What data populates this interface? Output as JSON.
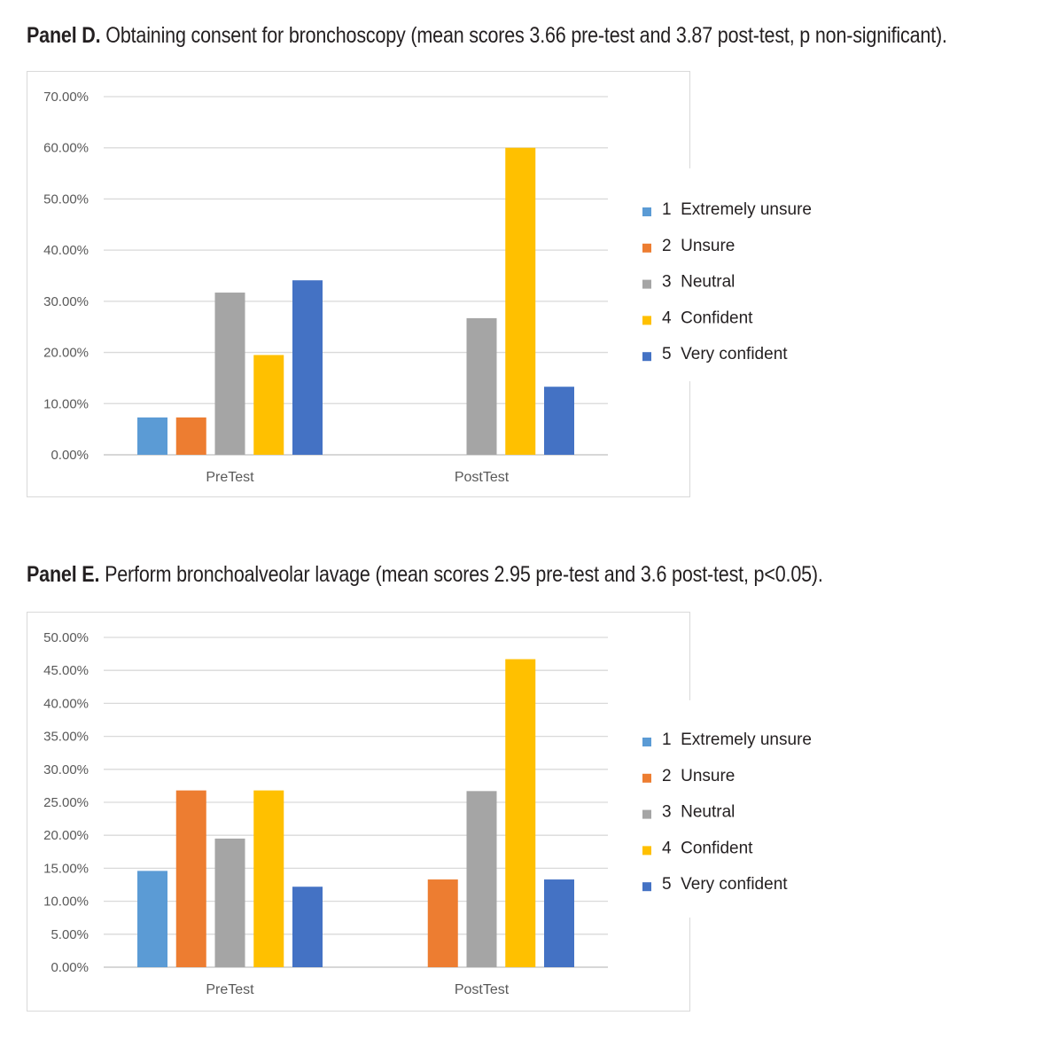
{
  "panels": [
    {
      "label": "Panel D.",
      "title": "Obtaining consent for bronchoscopy (mean scores 3.66 pre-test and 3.87 post-test, p non-significant)."
    },
    {
      "label": "Panel E.",
      "title": "Perform bronchoalveolar lavage (mean scores 2.95 pre-test and 3.6 post-test, p<0.05)."
    }
  ],
  "chart_data": [
    {
      "type": "bar",
      "title": "Panel D. Obtaining consent for bronchoscopy (mean scores 3.66 pre-test and 3.87 post-test, p non-significant).",
      "categories": [
        "PreTest",
        "PostTest"
      ],
      "ylim": [
        0,
        70
      ],
      "yticks": [
        "0.00%",
        "10.00%",
        "20.00%",
        "30.00%",
        "40.00%",
        "50.00%",
        "60.00%",
        "70.00%"
      ],
      "ystep": 10,
      "grid": true,
      "legend_position": "right",
      "series": [
        {
          "name": "1  Extremely unsure",
          "color": "#5b9bd5",
          "values": [
            7.3,
            0
          ]
        },
        {
          "name": "2  Unsure",
          "color": "#ed7d31",
          "values": [
            7.3,
            0
          ]
        },
        {
          "name": "3  Neutral",
          "color": "#a5a5a5",
          "values": [
            31.7,
            26.7
          ]
        },
        {
          "name": "4  Confident",
          "color": "#ffc000",
          "values": [
            19.5,
            60.0
          ]
        },
        {
          "name": "5  Very confident",
          "color": "#4472c4",
          "values": [
            34.1,
            13.3
          ]
        }
      ]
    },
    {
      "type": "bar",
      "title": "Panel E. Perform bronchoalveolar lavage (mean scores 2.95 pre-test and 3.6 post-test, p<0.05).",
      "categories": [
        "PreTest",
        "PostTest"
      ],
      "ylim": [
        0,
        50
      ],
      "yticks": [
        "0.00%",
        "5.00%",
        "10.00%",
        "15.00%",
        "20.00%",
        "25.00%",
        "30.00%",
        "35.00%",
        "40.00%",
        "45.00%",
        "50.00%"
      ],
      "ystep": 5,
      "grid": true,
      "legend_position": "right",
      "series": [
        {
          "name": "1  Extremely unsure",
          "color": "#5b9bd5",
          "values": [
            14.6,
            0
          ]
        },
        {
          "name": "2  Unsure",
          "color": "#ed7d31",
          "values": [
            26.8,
            13.3
          ]
        },
        {
          "name": "3  Neutral",
          "color": "#a5a5a5",
          "values": [
            19.5,
            26.7
          ]
        },
        {
          "name": "4  Confident",
          "color": "#ffc000",
          "values": [
            26.8,
            46.7
          ]
        },
        {
          "name": "5  Very confident",
          "color": "#4472c4",
          "values": [
            12.2,
            13.3
          ]
        }
      ]
    }
  ]
}
